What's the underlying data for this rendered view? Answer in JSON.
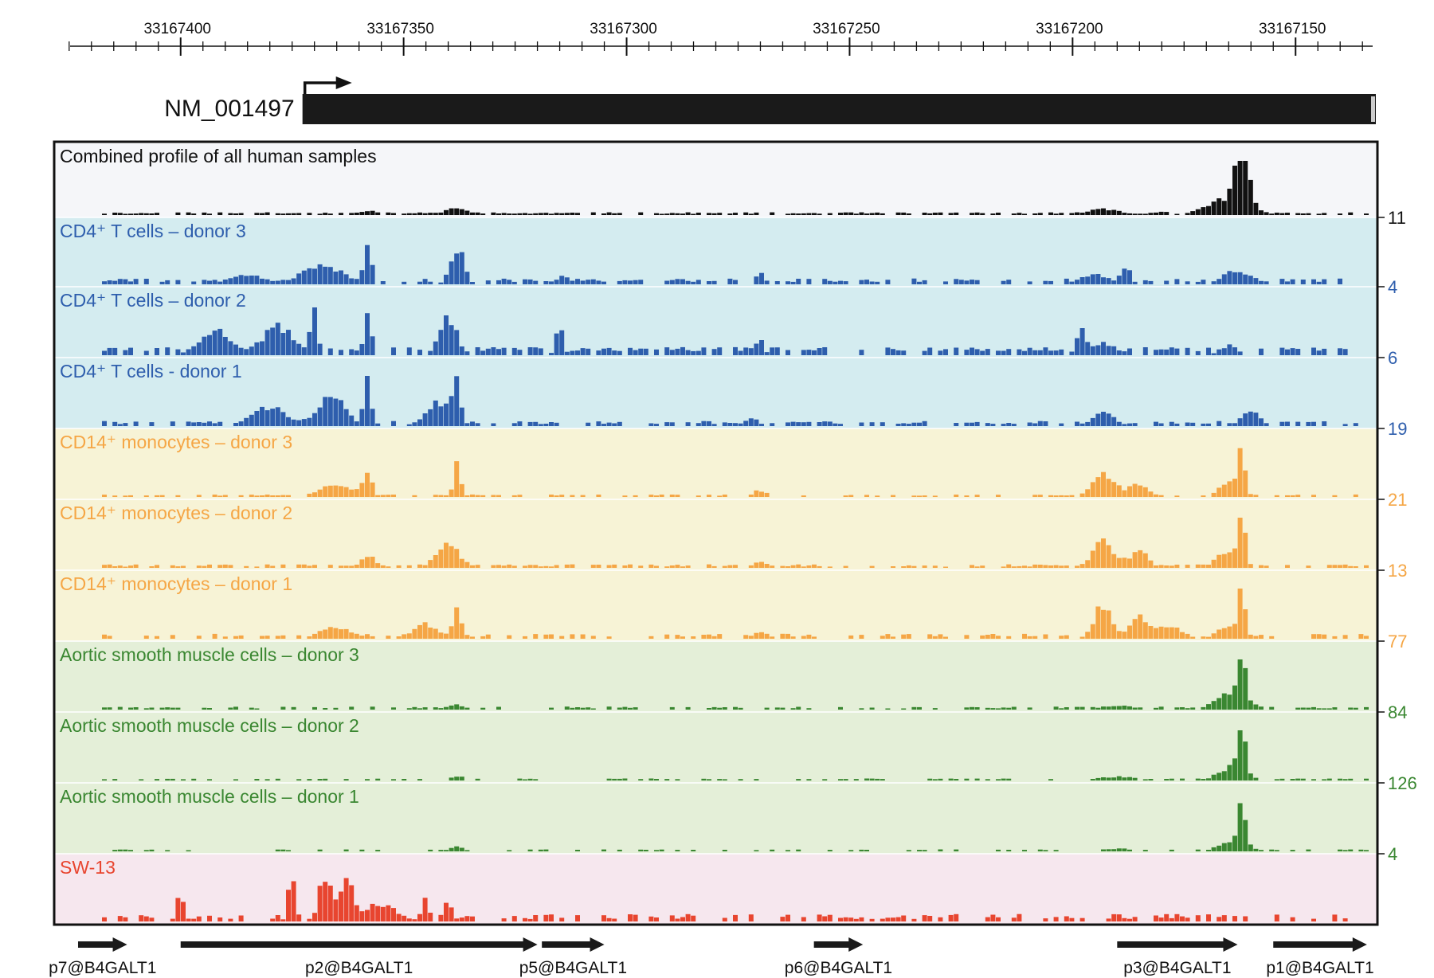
{
  "chart_data": {
    "type": "bar",
    "title": "",
    "x_axis": {
      "direction": "descending",
      "range": [
        33167428,
        33167132
      ],
      "ticks": [
        33167400,
        33167350,
        33167300,
        33167250,
        33167200,
        33167150
      ],
      "tick_labels": [
        "33167400",
        "33167350",
        "33167300",
        "33167250",
        "33167200",
        "33167150"
      ],
      "minor_tick_step": 5
    },
    "transcript": {
      "name": "NM_001497",
      "start": 33167370,
      "end": 33167132,
      "strand": "+"
    },
    "tracks": [
      {
        "name": "Combined profile of all human samples",
        "color": "#111111",
        "background": "#f5f6f9",
        "scale_label": "11",
        "peaks": [
          [
            33167162,
            1.0,
            1.5
          ],
          [
            33167165,
            0.32,
            4.5
          ],
          [
            33167338,
            0.16,
            2.5
          ],
          [
            33167358,
            0.08,
            2.5
          ],
          [
            33167193,
            0.12,
            3.5
          ],
          [
            33167180,
            0.06,
            2.0
          ]
        ],
        "noise": [
          0.015,
          0.05
        ],
        "coverage": 0.8,
        "seed": 11
      },
      {
        "name": "CD4⁺ T cells – donor 3",
        "color": "#2e5ead",
        "background": "#d4ecf0",
        "scale_label": "4",
        "peaks": [
          [
            33167358,
            1.0,
            0.8
          ],
          [
            33167338,
            0.82,
            1.5
          ],
          [
            33167368,
            0.42,
            4.5
          ],
          [
            33167385,
            0.2,
            4.0
          ],
          [
            33167314,
            0.19,
            1.5
          ],
          [
            33167270,
            0.26,
            1.0
          ],
          [
            33167188,
            0.43,
            1.0
          ],
          [
            33167195,
            0.22,
            3.0
          ],
          [
            33167163,
            0.32,
            3.0
          ]
        ],
        "noise": [
          0.05,
          0.12
        ],
        "coverage": 0.55,
        "seed": 21
      },
      {
        "name": "CD4⁺ T cells – donor 2",
        "color": "#2e5ead",
        "background": "#d4ecf0",
        "scale_label": "6",
        "peaks": [
          [
            33167370,
            1.0,
            0.8
          ],
          [
            33167358,
            1.0,
            0.8
          ],
          [
            33167340,
            0.75,
            2.0
          ],
          [
            33167378,
            0.6,
            3.5
          ],
          [
            33167392,
            0.52,
            3.5
          ],
          [
            33167315,
            0.7,
            0.8
          ],
          [
            33167270,
            0.4,
            0.8
          ],
          [
            33167198,
            0.5,
            1.0
          ],
          [
            33167193,
            0.25,
            3.0
          ],
          [
            33167165,
            0.2,
            2.0
          ]
        ],
        "noise": [
          0.08,
          0.16
        ],
        "coverage": 0.6,
        "seed": 31
      },
      {
        "name": "CD4⁺ T cells - donor 1",
        "color": "#2e5ead",
        "background": "#d4ecf0",
        "scale_label": "19",
        "peaks": [
          [
            33167358,
            1.0,
            0.8
          ],
          [
            33167338,
            1.0,
            0.8
          ],
          [
            33167366,
            0.6,
            3.0
          ],
          [
            33167380,
            0.4,
            4.0
          ],
          [
            33167342,
            0.5,
            3.0
          ],
          [
            33167272,
            0.18,
            1.5
          ],
          [
            33167193,
            0.28,
            2.5
          ],
          [
            33167160,
            0.3,
            2.0
          ]
        ],
        "noise": [
          0.04,
          0.1
        ],
        "coverage": 0.5,
        "seed": 41
      },
      {
        "name": "CD14⁺ monocytes – donor 3",
        "color": "#f5a645",
        "background": "#f7f3d6",
        "scale_label": "21",
        "peaks": [
          [
            33167162,
            1.0,
            0.8
          ],
          [
            33167338,
            0.65,
            0.8
          ],
          [
            33167358,
            0.45,
            1.0
          ],
          [
            33167365,
            0.28,
            3.5
          ],
          [
            33167193,
            0.5,
            2.5
          ],
          [
            33167185,
            0.3,
            2.0
          ],
          [
            33167270,
            0.14,
            1.5
          ],
          [
            33167165,
            0.3,
            2.0
          ]
        ],
        "noise": [
          0.015,
          0.05
        ],
        "coverage": 0.6,
        "seed": 51
      },
      {
        "name": "CD14⁺ monocytes – donor 2",
        "color": "#f5a645",
        "background": "#f7f3d6",
        "scale_label": "13",
        "peaks": [
          [
            33167162,
            1.0,
            0.8
          ],
          [
            33167340,
            0.52,
            2.5
          ],
          [
            33167358,
            0.28,
            1.5
          ],
          [
            33167193,
            0.55,
            2.5
          ],
          [
            33167185,
            0.35,
            2.0
          ],
          [
            33167165,
            0.35,
            2.5
          ],
          [
            33167270,
            0.12,
            1.5
          ]
        ],
        "noise": [
          0.02,
          0.07
        ],
        "coverage": 0.65,
        "seed": 61
      },
      {
        "name": "CD14⁺ monocytes – donor 1",
        "color": "#f5a645",
        "background": "#f7f3d6",
        "scale_label": "77",
        "peaks": [
          [
            33167162,
            1.0,
            0.8
          ],
          [
            33167338,
            0.75,
            0.8
          ],
          [
            33167345,
            0.3,
            3.0
          ],
          [
            33167365,
            0.25,
            3.5
          ],
          [
            33167193,
            0.72,
            2.0
          ],
          [
            33167185,
            0.5,
            2.0
          ],
          [
            33167178,
            0.3,
            2.5
          ],
          [
            33167165,
            0.25,
            2.5
          ],
          [
            33167270,
            0.15,
            1.5
          ]
        ],
        "noise": [
          0.04,
          0.1
        ],
        "coverage": 0.5,
        "seed": 71
      },
      {
        "name": "Aortic smooth muscle cells – donor 3",
        "color": "#3a8731",
        "background": "#e4efd8",
        "scale_label": "84",
        "peaks": [
          [
            33167162,
            1.0,
            0.8
          ],
          [
            33167164,
            0.35,
            3.5
          ],
          [
            33167338,
            0.1,
            2.0
          ],
          [
            33167190,
            0.08,
            4.0
          ]
        ],
        "noise": [
          0.015,
          0.06
        ],
        "coverage": 0.55,
        "seed": 81
      },
      {
        "name": "Aortic smooth muscle cells – donor 2",
        "color": "#3a8731",
        "background": "#e4efd8",
        "scale_label": "126",
        "peaks": [
          [
            33167162,
            1.0,
            0.8
          ],
          [
            33167164,
            0.3,
            3.0
          ],
          [
            33167338,
            0.1,
            1.5
          ],
          [
            33167190,
            0.08,
            4.0
          ]
        ],
        "noise": [
          0.01,
          0.04
        ],
        "coverage": 0.65,
        "seed": 91
      },
      {
        "name": "Aortic smooth muscle cells – donor 1",
        "color": "#3a8731",
        "background": "#e4efd8",
        "scale_label": "4",
        "peaks": [
          [
            33167162,
            1.0,
            0.8
          ],
          [
            33167164,
            0.22,
            3.0
          ],
          [
            33167338,
            0.1,
            1.5
          ],
          [
            33167190,
            0.06,
            4.0
          ]
        ],
        "noise": [
          0.01,
          0.04
        ],
        "coverage": 0.65,
        "seed": 101
      },
      {
        "name": "SW-13",
        "color": "#e8452f",
        "background": "#f6e7ee",
        "scale_label": "",
        "peaks": [
          [
            33167400,
            0.72,
            0.8
          ],
          [
            33167375,
            1.0,
            0.8
          ],
          [
            33167368,
            0.75,
            1.0
          ],
          [
            33167365,
            0.55,
            2.5
          ],
          [
            33167362,
            0.72,
            0.8
          ],
          [
            33167340,
            0.45,
            1.0
          ],
          [
            33167345,
            0.5,
            0.8
          ],
          [
            33167355,
            0.38,
            3.5
          ],
          [
            33167190,
            0.15,
            1.5
          ]
        ],
        "noise": [
          0.05,
          0.15
        ],
        "coverage": 0.45,
        "seed": 111
      }
    ],
    "promoters": [
      {
        "name": "p7@B4GALT1",
        "start": 33167423,
        "end": 33167412
      },
      {
        "name": "p2@B4GALT1",
        "start": 33167400,
        "end": 33167320
      },
      {
        "name": "p5@B4GALT1",
        "start": 33167319,
        "end": 33167305
      },
      {
        "name": "p6@B4GALT1",
        "start": 33167258,
        "end": 33167247
      },
      {
        "name": "p3@B4GALT1",
        "start": 33167190,
        "end": 33167163
      },
      {
        "name": "p1@B4GALT1",
        "start": 33167155,
        "end": 33167134
      }
    ]
  }
}
